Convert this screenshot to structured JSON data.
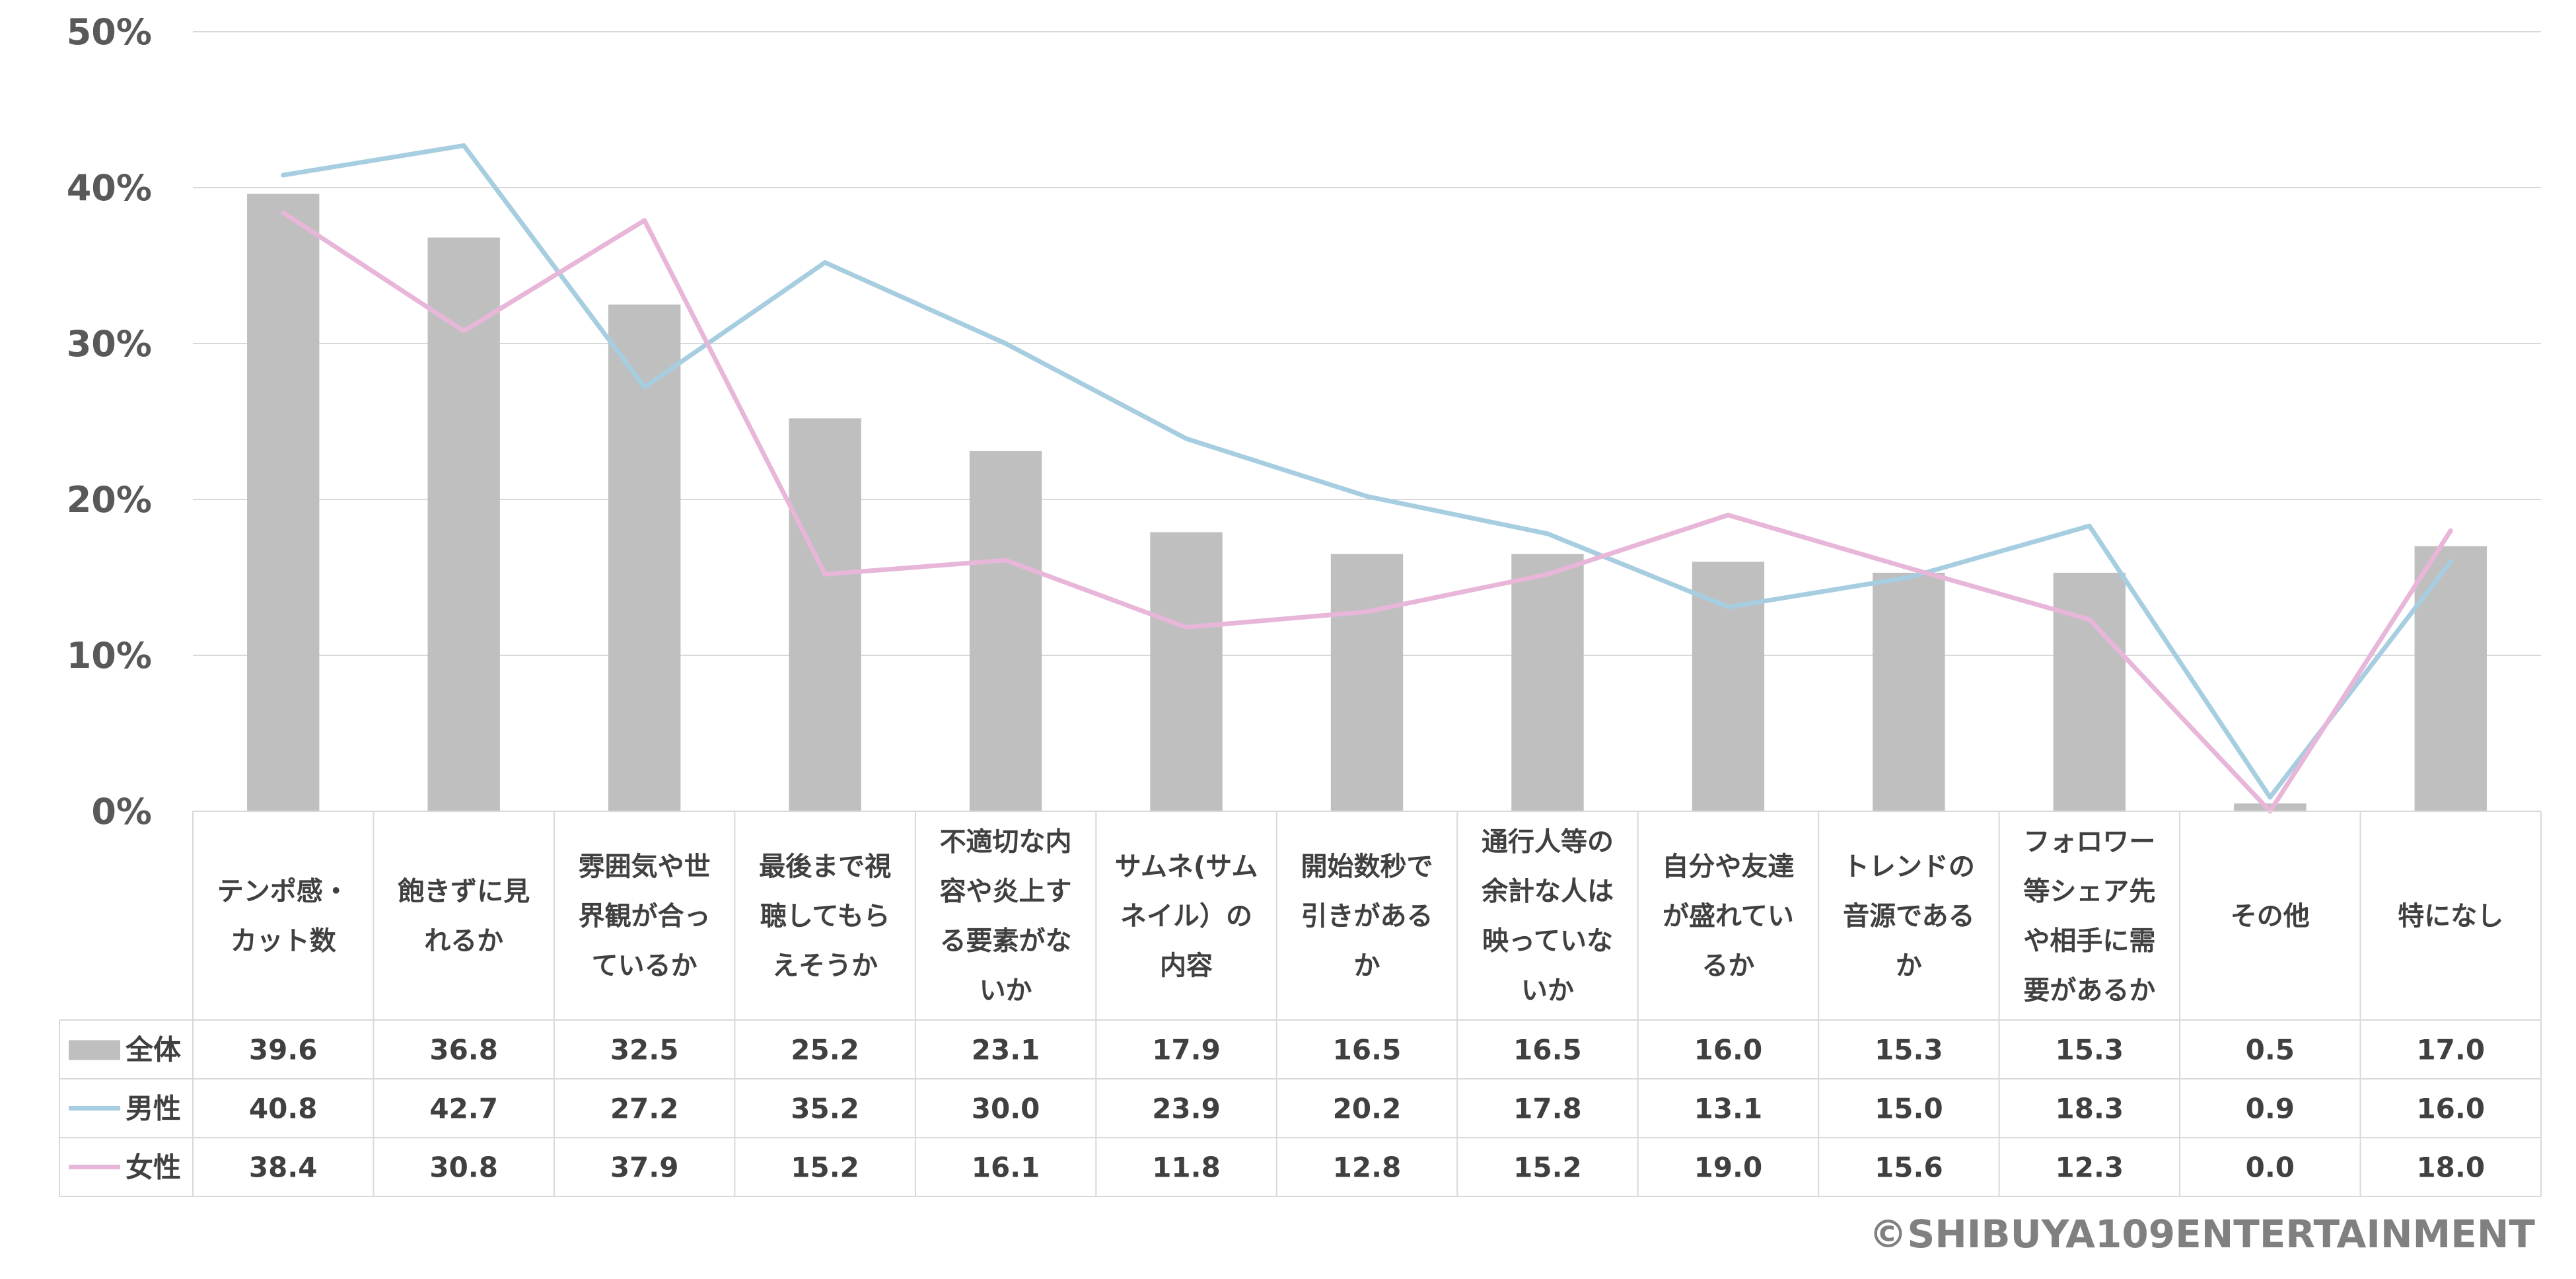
{
  "chart_data": {
    "type": "bar+line",
    "categories": [
      [
        "テンポ感・",
        "カット数"
      ],
      [
        "飽きずに見",
        "れるか"
      ],
      [
        "雰囲気や世",
        "界観が合っ",
        "ているか"
      ],
      [
        "最後まで視",
        "聴してもら",
        "えそうか"
      ],
      [
        "不適切な内",
        "容や炎上す",
        "る要素がな",
        "いか"
      ],
      [
        "サムネ(サム",
        "ネイル）の",
        "内容"
      ],
      [
        "開始数秒で",
        "引きがある",
        "か"
      ],
      [
        "通行人等の",
        "余計な人は",
        "映っていな",
        "いか"
      ],
      [
        "自分や友達",
        "が盛れてい",
        "るか"
      ],
      [
        "トレンドの",
        "音源である",
        "か"
      ],
      [
        "フォロワー",
        "等シェア先",
        "や相手に需",
        "要があるか"
      ],
      [
        "その他"
      ],
      [
        "特になし"
      ]
    ],
    "series": [
      {
        "name": "全体",
        "kind": "bar",
        "color": "#bfbfbf",
        "values": [
          39.6,
          36.8,
          32.5,
          25.2,
          23.1,
          17.9,
          16.5,
          16.5,
          16.0,
          15.3,
          15.3,
          0.5,
          17.0
        ]
      },
      {
        "name": "男性",
        "kind": "line",
        "color": "#a6cde0",
        "values": [
          40.8,
          42.7,
          27.2,
          35.2,
          30.0,
          23.9,
          20.2,
          17.8,
          13.1,
          15.0,
          18.3,
          0.9,
          16.0
        ]
      },
      {
        "name": "女性",
        "kind": "line",
        "color": "#e8b6d8",
        "values": [
          38.4,
          30.8,
          37.9,
          15.2,
          16.1,
          11.8,
          12.8,
          15.2,
          19.0,
          15.6,
          12.3,
          0.0,
          18.0
        ]
      }
    ],
    "value_labels": [
      [
        "39.6",
        "36.8",
        "32.5",
        "25.2",
        "23.1",
        "17.9",
        "16.5",
        "16.5",
        "16.0",
        "15.3",
        "15.3",
        "0.5",
        "17.0"
      ],
      [
        "40.8",
        "42.7",
        "27.2",
        "35.2",
        "30.0",
        "23.9",
        "20.2",
        "17.8",
        "13.1",
        "15.0",
        "18.3",
        "0.9",
        "16.0"
      ],
      [
        "38.4",
        "30.8",
        "37.9",
        "15.2",
        "16.1",
        "11.8",
        "12.8",
        "15.2",
        "19.0",
        "15.6",
        "12.3",
        "0.0",
        "18.0"
      ]
    ],
    "y_ticks": [
      "0%",
      "10%",
      "20%",
      "30%",
      "40%",
      "50%"
    ],
    "ylim": [
      0,
      50
    ],
    "grid": true,
    "data_table": true
  },
  "credit": "©SHIBUYA109ENTERTAINMENT"
}
